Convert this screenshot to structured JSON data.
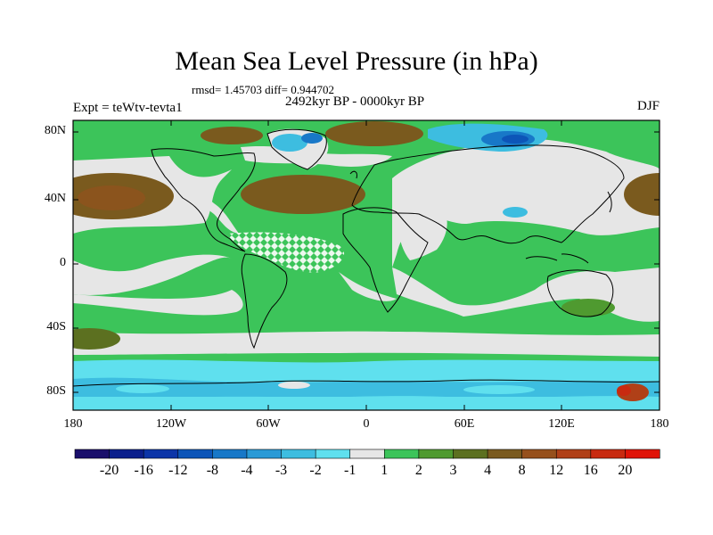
{
  "title": "Mean Sea Level Pressure (in hPa)",
  "stats": "rmsd= 1.45703 diff= 0.944702",
  "period": "2492kyr BP - 0000kyr BP",
  "experiment": "Expt = teWtv-tevta1",
  "season": "DJF",
  "lat_labels": [
    "80N",
    "40N",
    "0",
    "40S",
    "80S"
  ],
  "lon_labels": [
    "180",
    "120W",
    "60W",
    "0",
    "60E",
    "120E",
    "180"
  ],
  "colorbar": {
    "labels": [
      "-20",
      "-16",
      "-12",
      "-8",
      "-4",
      "-3",
      "-2",
      "-1",
      "1",
      "2",
      "3",
      "4",
      "8",
      "12",
      "16",
      "20"
    ],
    "colors": [
      "#1a0f6b",
      "#0b1f8c",
      "#0c35a8",
      "#0d55b8",
      "#1878c8",
      "#2a9ad6",
      "#3dbde0",
      "#5fe0ee",
      "#e6e6e6",
      "#3cc45a",
      "#4f9a30",
      "#5c7020",
      "#7a5a1e",
      "#96501c",
      "#b04018",
      "#c82a10",
      "#e01408"
    ]
  }
}
